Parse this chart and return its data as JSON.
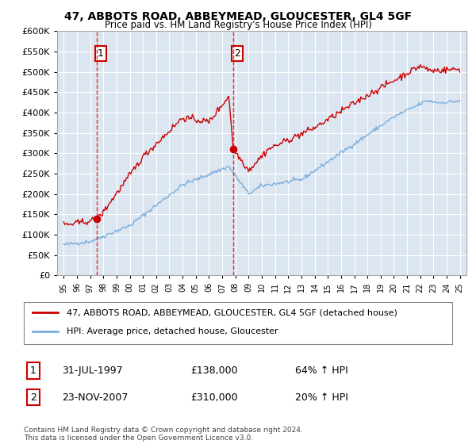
{
  "title1": "47, ABBOTS ROAD, ABBEYMEAD, GLOUCESTER, GL4 5GF",
  "title2": "Price paid vs. HM Land Registry's House Price Index (HPI)",
  "legend_house": "47, ABBOTS ROAD, ABBEYMEAD, GLOUCESTER, GL4 5GF (detached house)",
  "legend_hpi": "HPI: Average price, detached house, Gloucester",
  "sale1_date": "31-JUL-1997",
  "sale1_price": 138000,
  "sale1_pct": "64% ↑ HPI",
  "sale2_date": "23-NOV-2007",
  "sale2_price": 310000,
  "sale2_pct": "20% ↑ HPI",
  "footnote": "Contains HM Land Registry data © Crown copyright and database right 2024.\nThis data is licensed under the Open Government Licence v3.0.",
  "house_color": "#cc0000",
  "hpi_color": "#7aaedc",
  "bg_color": "#dce6f1",
  "ylim": [
    0,
    600000
  ],
  "yticks": [
    0,
    50000,
    100000,
    150000,
    200000,
    250000,
    300000,
    350000,
    400000,
    450000,
    500000,
    550000,
    600000
  ]
}
